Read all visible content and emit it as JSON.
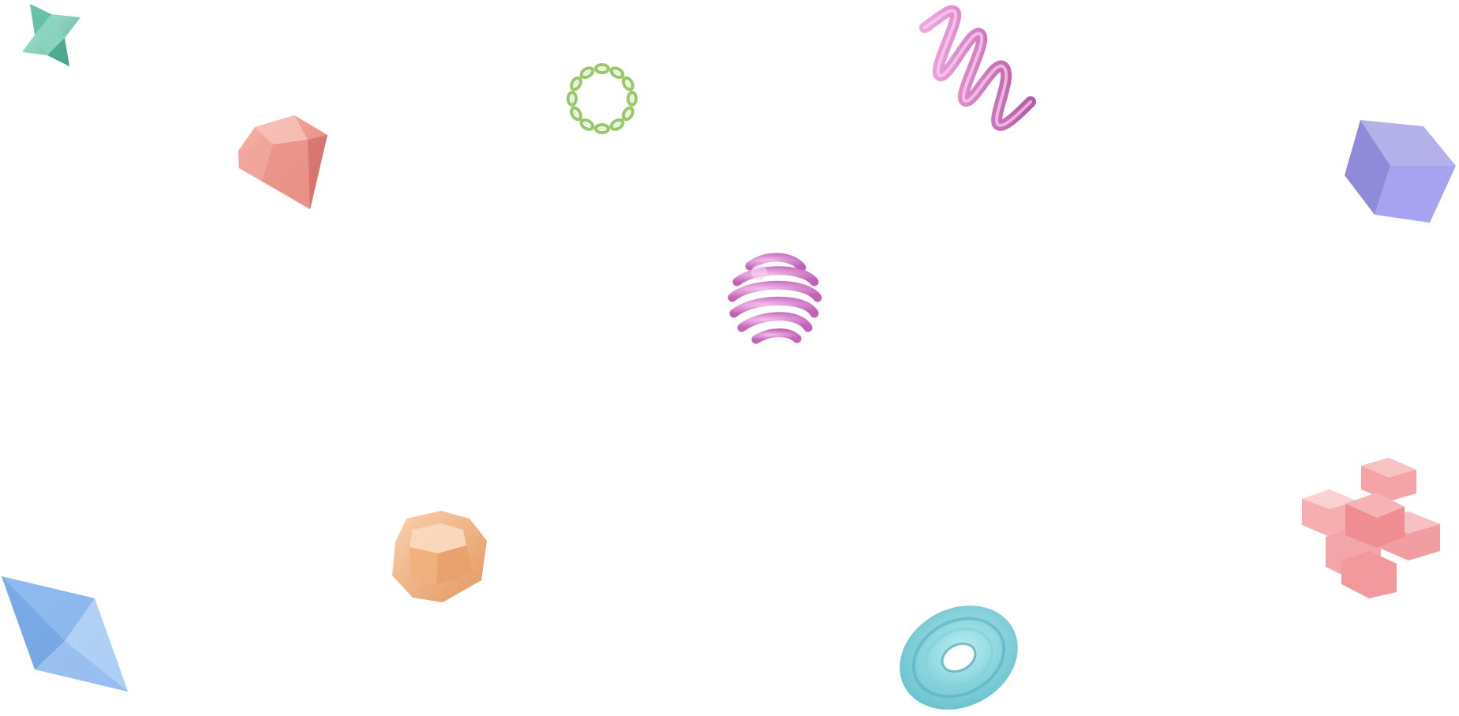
{
  "scene": {
    "background": "#ffffff",
    "shapes": [
      {
        "name": "green-star-octahedron-shape",
        "color": "#6fc7ad"
      },
      {
        "name": "green-coil-ring-shape",
        "color": "#9fcf70"
      },
      {
        "name": "pink-zigzag-spring-shape",
        "color": "#d77ac6"
      },
      {
        "name": "salmon-gem-shape",
        "color": "#ee9388"
      },
      {
        "name": "lavender-cube-shape",
        "color": "#9f9be6"
      },
      {
        "name": "magenta-spiral-sphere-shape",
        "color": "#d97ad0"
      },
      {
        "name": "orange-faceted-gem-shape",
        "color": "#f2b07c"
      },
      {
        "name": "blue-diamond-bipyramid-shape",
        "color": "#8ab7ee"
      },
      {
        "name": "teal-twisted-torus-shape",
        "color": "#72c7d4"
      },
      {
        "name": "pink-cube-cross-shape",
        "color": "#f28f93"
      }
    ]
  }
}
